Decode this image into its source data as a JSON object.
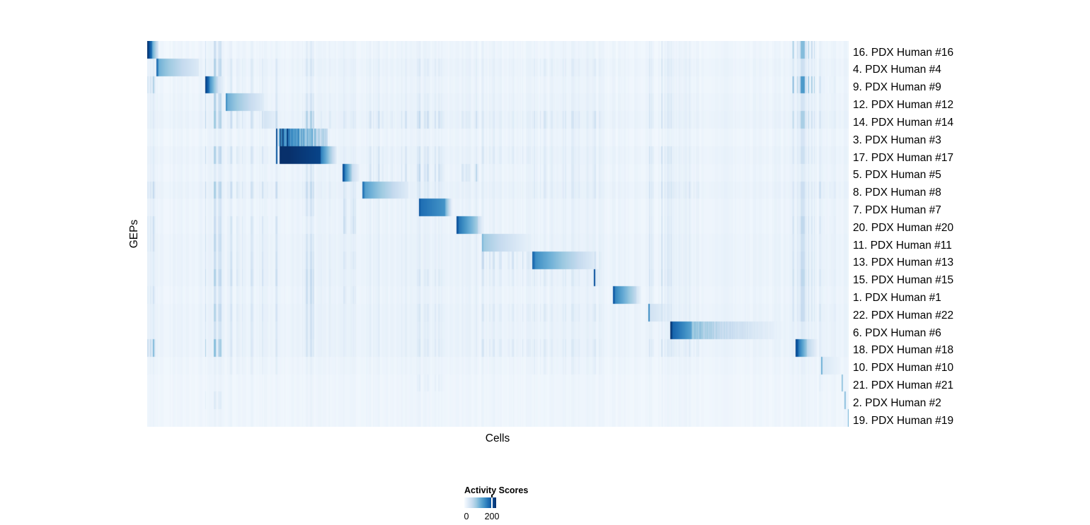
{
  "figure": {
    "background": "#ffffff"
  },
  "chart_data": {
    "type": "heatmap",
    "title": "",
    "xlabel": "Cells",
    "ylabel": "GEPs",
    "scale_max": 230,
    "colormap": {
      "name": "Blues",
      "stops": [
        "#f7fbff",
        "#deebf7",
        "#c6dbef",
        "#9ecae1",
        "#6baed6",
        "#4292c6",
        "#2171b5",
        "#08519c",
        "#08306b"
      ]
    },
    "legend": {
      "title": "Activity Scores",
      "ticks": [
        {
          "value": 0,
          "label": "0"
        },
        {
          "value": 200,
          "label": "200"
        }
      ]
    },
    "default_stripe_weight": 0.22,
    "background_stripe_clusters": [
      {
        "id": "A",
        "s": 0.0,
        "e": 0.013,
        "d": 0.5,
        "str": 70
      },
      {
        "id": "B",
        "s": 0.081,
        "e": 0.106,
        "d": 0.55,
        "str": 70
      },
      {
        "id": "C",
        "s": 0.112,
        "e": 0.186,
        "d": 0.45,
        "str": 55
      },
      {
        "id": "D",
        "s": 0.213,
        "e": 0.263,
        "d": 0.5,
        "str": 60
      },
      {
        "id": "E",
        "s": 0.278,
        "e": 0.298,
        "d": 0.5,
        "str": 60
      },
      {
        "id": "F",
        "s": 0.315,
        "e": 0.374,
        "d": 0.45,
        "str": 45
      },
      {
        "id": "G",
        "s": 0.385,
        "e": 0.428,
        "d": 0.5,
        "str": 55
      },
      {
        "id": "H",
        "s": 0.439,
        "e": 0.473,
        "d": 0.5,
        "str": 55
      },
      {
        "id": "I",
        "s": 0.476,
        "e": 0.547,
        "d": 0.4,
        "str": 45
      },
      {
        "id": "J",
        "s": 0.549,
        "e": 0.648,
        "d": 0.45,
        "str": 50
      },
      {
        "id": "K",
        "s": 0.702,
        "e": 0.748,
        "d": 0.5,
        "str": 55
      },
      {
        "id": "K2",
        "s": 0.748,
        "e": 0.788,
        "d": 0.45,
        "str": 50
      },
      {
        "id": "L",
        "s": 0.92,
        "e": 0.952,
        "d": 0.55,
        "str": 70
      },
      {
        "id": "M",
        "s": 0.957,
        "e": 0.99,
        "d": 0.45,
        "str": 50
      }
    ],
    "rows": [
      {
        "label": "16. PDX Human #16",
        "wash": 4,
        "defw": 0.15,
        "w": {
          "L": 1.3,
          "B": 0.6,
          "K": 0.35,
          "D": 0.25
        },
        "blocks": [
          {
            "s": 0.0,
            "e": 0.007,
            "v0": 228,
            "v1": 160
          },
          {
            "s": 0.007,
            "e": 0.016,
            "v0": 120,
            "v1": 28
          }
        ]
      },
      {
        "label": "4. PDX Human #4",
        "wash": 7,
        "w": {
          "B": 0.85,
          "C": 0.45,
          "D": 0.4,
          "G": 0.4,
          "J": 0.4,
          "K": 0.55,
          "L": 0.5
        },
        "blocks": [
          {
            "s": 0.0131,
            "e": 0.0152,
            "v0": 185,
            "v1": 150
          },
          {
            "s": 0.0152,
            "e": 0.0736,
            "v0": 118,
            "v1": 30,
            "p": 0.75
          }
        ]
      },
      {
        "label": "9. PDX Human #9",
        "wash": 5,
        "defw": 0.2,
        "w": {
          "A": 1.0,
          "C": 0.45,
          "K": 0.4,
          "L": 1.8,
          "M": 0.7
        },
        "blocks": [
          {
            "s": 0.0827,
            "e": 0.0878,
            "v0": 218,
            "v1": 170
          },
          {
            "s": 0.0878,
            "e": 0.0999,
            "v0": 150,
            "v1": 55
          },
          {
            "s": 0.0999,
            "e": 0.109,
            "v0": 45,
            "v1": 16
          }
        ]
      },
      {
        "label": "12. PDX Human #12",
        "wash": 7,
        "w": {
          "B": 0.85,
          "C": 0.5,
          "D": 0.45,
          "G": 0.35,
          "K": 0.65,
          "L": 0.4
        },
        "blocks": [
          {
            "s": 0.111,
            "e": 0.1131,
            "v0": 162,
            "v1": 140
          },
          {
            "s": 0.1131,
            "e": 0.1655,
            "v0": 120,
            "v1": 28,
            "p": 0.8
          }
        ]
      },
      {
        "label": "14. PDX Human #14",
        "wash": 9,
        "w": {
          "B": 1.0,
          "C": 0.9,
          "D": 1.0,
          "E": 0.4,
          "F": 0.7,
          "G": 0.9,
          "H": 0.6,
          "I": 0.4,
          "J": 0.7,
          "K": 0.7,
          "L": 0.9,
          "M": 0.5
        },
        "blocks": [
          {
            "s": 0.1655,
            "e": 0.1837,
            "v0": 42,
            "v1": 20
          }
        ]
      },
      {
        "label": "3. PDX Human #3",
        "wash": 5,
        "defw": 0.15,
        "w": {
          "I": 0.35,
          "J": 0.35,
          "L": 0.4
        },
        "blocks": [
          {
            "s": 0.1827,
            "e": 0.1847,
            "v0": 205,
            "v1": 205
          },
          {
            "s": 0.187,
            "e": 0.2573,
            "v0": 185,
            "v1": 45,
            "st": 0.55
          }
        ]
      },
      {
        "label": "17. PDX Human #17",
        "wash": 8,
        "w": {
          "B": 0.85,
          "C": 0.7,
          "F": 0.5,
          "G": 0.6,
          "I": 0.5,
          "J": 0.4,
          "K": 0.8,
          "L": 0.5
        },
        "blocks": [
          {
            "s": 0.1827,
            "e": 0.1847,
            "v0": 195,
            "v1": 195
          },
          {
            "s": 0.1878,
            "e": 0.2467,
            "v0": 235,
            "v1": 212
          },
          {
            "s": 0.2467,
            "e": 0.27,
            "v0": 165,
            "v1": 22
          }
        ]
      },
      {
        "label": "5. PDX Human #5",
        "wash": 6,
        "w": {
          "D": 0.4,
          "F": 0.7,
          "G": 1.0,
          "H": 1.0,
          "J": 0.5,
          "K": 0.5
        },
        "blocks": [
          {
            "s": 0.2785,
            "e": 0.2815,
            "v0": 205,
            "v1": 180
          },
          {
            "s": 0.2815,
            "e": 0.2916,
            "v0": 160,
            "v1": 70
          },
          {
            "s": 0.2916,
            "e": 0.302,
            "v0": 55,
            "v1": 16
          }
        ]
      },
      {
        "label": "8. PDX Human #8",
        "wash": 9,
        "w": {
          "A": 0.7,
          "B": 0.9,
          "C": 0.9,
          "D": 0.7,
          "E": 0.45,
          "F": 0.4,
          "G": 0.5,
          "J": 0.5,
          "K": 0.8,
          "K2": 0.45,
          "L": 0.5,
          "M": 0.8
        },
        "blocks": [
          {
            "s": 0.3058,
            "e": 0.3088,
            "v0": 178,
            "v1": 160
          },
          {
            "s": 0.3088,
            "e": 0.3714,
            "v0": 138,
            "v1": 28,
            "p": 0.8
          }
        ]
      },
      {
        "label": "7. PDX Human #7",
        "wash": 6,
        "w": {
          "B": 0.5,
          "D": 0.5,
          "E": 0.7,
          "G": 0.3,
          "K": 0.5,
          "L": 0.45
        },
        "blocks": [
          {
            "s": 0.3865,
            "e": 0.3895,
            "v0": 205,
            "v1": 185
          },
          {
            "s": 0.3895,
            "e": 0.4248,
            "v0": 175,
            "v1": 140
          },
          {
            "s": 0.4248,
            "e": 0.434,
            "v0": 110,
            "v1": 18
          }
        ]
      },
      {
        "label": "20. PDX Human #20",
        "wash": 6,
        "w": {
          "A": 0.6,
          "B": 0.6,
          "C": 0.7,
          "E": 0.85,
          "K": 0.6,
          "L": 0.7,
          "M": 0.5
        },
        "blocks": [
          {
            "s": 0.44,
            "e": 0.4435,
            "v0": 212,
            "v1": 185
          },
          {
            "s": 0.4435,
            "e": 0.4703,
            "v0": 170,
            "v1": 80
          },
          {
            "s": 0.4703,
            "e": 0.479,
            "v0": 60,
            "v1": 14
          }
        ]
      },
      {
        "label": "11. PDX Human #11",
        "wash": 8,
        "w": {
          "A": 0.5,
          "B": 0.7,
          "C": 0.55,
          "D": 0.45,
          "I": 0.45,
          "K": 0.7,
          "L": 0.5
        },
        "blocks": [
          {
            "s": 0.4763,
            "e": 0.4788,
            "v0": 120,
            "v1": 95
          },
          {
            "s": 0.4788,
            "e": 0.5429,
            "v0": 88,
            "v1": 20,
            "p": 0.8
          }
        ]
      },
      {
        "label": "13. PDX Human #13",
        "wash": 8,
        "w": {
          "B": 0.55,
          "C": 0.7,
          "D": 0.55,
          "E": 0.45,
          "I": 1.0,
          "J": 0.7,
          "K": 0.7,
          "L": 0.6
        },
        "blocks": [
          {
            "s": 0.548,
            "e": 0.552,
            "v0": 188,
            "v1": 165
          },
          {
            "s": 0.552,
            "e": 0.6348,
            "v0": 152,
            "v1": 32,
            "p": 0.85
          }
        ]
      },
      {
        "label": "15. PDX Human #15",
        "wash": 8,
        "w": {
          "B": 0.85,
          "C": 0.85,
          "D": 0.7,
          "G": 0.5,
          "I": 0.5,
          "J": 0.5,
          "K": 0.85,
          "L": 0.7,
          "M": 0.45
        },
        "blocks": [
          {
            "s": 0.6358,
            "e": 0.6383,
            "v0": 200,
            "v1": 200
          },
          {
            "s": 0.6383,
            "e": 0.645,
            "v0": 35,
            "v1": 14
          }
        ]
      },
      {
        "label": "1. PDX Human #1",
        "wash": 6,
        "w": {
          "A": 0.5,
          "B": 0.5,
          "C": 0.45,
          "D": 0.7,
          "E": 0.45,
          "K": 0.5,
          "L": 0.6
        },
        "blocks": [
          {
            "s": 0.663,
            "e": 0.667,
            "v0": 198,
            "v1": 175
          },
          {
            "s": 0.667,
            "e": 0.6968,
            "v0": 155,
            "v1": 58
          },
          {
            "s": 0.6968,
            "e": 0.704,
            "v0": 45,
            "v1": 14
          }
        ]
      },
      {
        "label": "22. PDX Human #22",
        "wash": 8,
        "w": {
          "B": 0.8,
          "C": 0.6,
          "D": 0.5,
          "G": 0.45,
          "I": 0.5,
          "J": 0.5,
          "K": 0.7,
          "L": 0.6,
          "M": 0.5
        },
        "blocks": [
          {
            "s": 0.7135,
            "e": 0.716,
            "v0": 150,
            "v1": 150
          },
          {
            "s": 0.716,
            "e": 0.7417,
            "v0": 46,
            "v1": 18
          }
        ]
      },
      {
        "label": "6. PDX Human #6",
        "wash": 8,
        "w": {
          "B": 0.5,
          "C": 0.45,
          "D": 0.5,
          "G": 0.35
        },
        "blocks": [
          {
            "s": 0.7457,
            "e": 0.7487,
            "v0": 226,
            "v1": 205
          },
          {
            "s": 0.7487,
            "e": 0.775,
            "v0": 185,
            "v1": 128
          },
          {
            "s": 0.775,
            "e": 0.9153,
            "v0": 95,
            "v1": 8,
            "p": 0.8,
            "st": 0.25
          }
        ]
      },
      {
        "label": "18. PDX Human #18",
        "wash": 8,
        "w": {
          "A": 1.4,
          "B": 1.2,
          "C": 0.5,
          "D": 0.45,
          "G": 0.45,
          "I": 0.6,
          "J": 0.5,
          "K": 0.7,
          "K2": 0.45
        },
        "blocks": [
          {
            "s": 0.9234,
            "e": 0.9274,
            "v0": 215,
            "v1": 190
          },
          {
            "s": 0.9274,
            "e": 0.9395,
            "v0": 172,
            "v1": 88
          },
          {
            "s": 0.9395,
            "e": 0.9556,
            "v0": 70,
            "v1": 14
          }
        ]
      },
      {
        "label": "10. PDX Human #10",
        "wash": 6,
        "defw": 0.12,
        "noise": 0.8,
        "w": {
          "C": 0.3,
          "J": 0.3
        },
        "blocks": [
          {
            "s": 0.9597,
            "e": 0.9617,
            "v0": 112,
            "v1": 112
          },
          {
            "s": 0.9617,
            "e": 0.9869,
            "v0": 35,
            "v1": 14
          }
        ]
      },
      {
        "label": "21. PDX Human #21",
        "wash": 5,
        "defw": 0.08,
        "noise": 0.7,
        "w": {
          "G": 0.3,
          "M": 0.25
        },
        "blocks": [
          {
            "s": 0.9899,
            "e": 0.9919,
            "v0": 90,
            "v1": 90
          }
        ]
      },
      {
        "label": "2. PDX Human #2",
        "wash": 5,
        "defw": 0.08,
        "noise": 0.7,
        "w": {
          "B": 0.3
        },
        "blocks": [
          {
            "s": 0.9932,
            "e": 0.9957,
            "v0": 95,
            "v1": 95
          }
        ]
      },
      {
        "label": "19. PDX Human #19",
        "wash": 5,
        "defw": 0.08,
        "noise": 0.7,
        "w": {},
        "blocks": [
          {
            "s": 0.998,
            "e": 1.0,
            "v0": 112,
            "v1": 112
          }
        ]
      }
    ]
  }
}
